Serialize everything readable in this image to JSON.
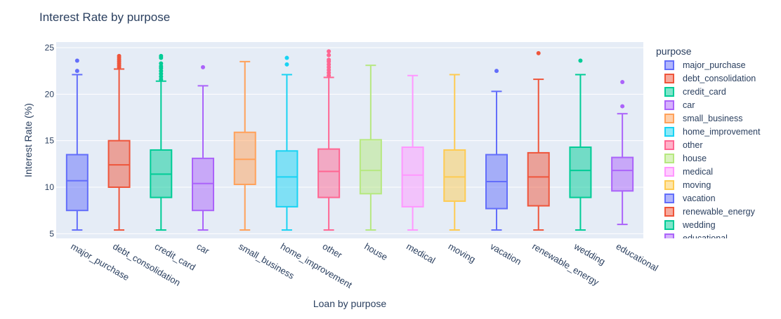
{
  "chart_data": {
    "type": "box",
    "title": "Interest Rate by purpose",
    "xlabel": "Loan by purpose",
    "ylabel": "Interest Rate (%)",
    "ylim": [
      4.5,
      25.6
    ],
    "yticks": [
      5,
      10,
      15,
      20,
      25
    ],
    "grid": true,
    "legend": {
      "title": "purpose",
      "placement": "right"
    },
    "categories": [
      "major_purchase",
      "debt_consolidation",
      "credit_card",
      "car",
      "small_business",
      "home_improvement",
      "other",
      "house",
      "medical",
      "moving",
      "vacation",
      "renewable_energy",
      "wedding",
      "educational"
    ],
    "series": [
      {
        "name": "major_purchase",
        "color": "#636efa",
        "min": 5.4,
        "q1": 7.5,
        "median": 10.7,
        "q3": 13.5,
        "max": 22.1,
        "outliers": [
          22.5,
          23.6
        ]
      },
      {
        "name": "debt_consolidation",
        "color": "#ef553b",
        "min": 5.4,
        "q1": 10.0,
        "median": 12.4,
        "q3": 15.0,
        "max": 22.7,
        "outliers": [
          22.9,
          23.1,
          23.3,
          23.5,
          23.7,
          23.9,
          24.1
        ]
      },
      {
        "name": "credit_card",
        "color": "#00cc96",
        "min": 5.4,
        "q1": 8.9,
        "median": 11.4,
        "q3": 14.0,
        "max": 21.4,
        "outliers": [
          21.6,
          21.9,
          22.2,
          22.5,
          22.8,
          23.0,
          23.3,
          23.9,
          24.1
        ]
      },
      {
        "name": "car",
        "color": "#ab63fa",
        "min": 5.4,
        "q1": 7.5,
        "median": 10.4,
        "q3": 13.1,
        "max": 20.9,
        "outliers": [
          22.9
        ]
      },
      {
        "name": "small_business",
        "color": "#ffa15a",
        "min": 5.4,
        "q1": 10.3,
        "median": 13.0,
        "q3": 15.9,
        "max": 23.5,
        "outliers": []
      },
      {
        "name": "home_improvement",
        "color": "#19d3f3",
        "min": 5.4,
        "q1": 7.9,
        "median": 11.1,
        "q3": 13.9,
        "max": 22.1,
        "outliers": [
          23.2,
          23.9
        ]
      },
      {
        "name": "other",
        "color": "#ff6692",
        "min": 5.4,
        "q1": 8.9,
        "median": 11.7,
        "q3": 14.1,
        "max": 21.8,
        "outliers": [
          22.0,
          22.3,
          22.6,
          22.9,
          23.2,
          23.5,
          23.7,
          24.2,
          24.6
        ]
      },
      {
        "name": "house",
        "color": "#b6e880",
        "min": 5.4,
        "q1": 9.3,
        "median": 11.8,
        "q3": 15.1,
        "max": 23.1,
        "outliers": []
      },
      {
        "name": "medical",
        "color": "#ff97ff",
        "min": 5.4,
        "q1": 7.9,
        "median": 11.3,
        "q3": 14.3,
        "max": 22.0,
        "outliers": []
      },
      {
        "name": "moving",
        "color": "#fecb52",
        "min": 5.4,
        "q1": 8.5,
        "median": 11.1,
        "q3": 14.0,
        "max": 22.1,
        "outliers": []
      },
      {
        "name": "vacation",
        "color": "#636efa",
        "min": 5.4,
        "q1": 7.7,
        "median": 10.6,
        "q3": 13.5,
        "max": 20.3,
        "outliers": [
          22.5
        ]
      },
      {
        "name": "renewable_energy",
        "color": "#ef553b",
        "min": 5.4,
        "q1": 8.0,
        "median": 11.1,
        "q3": 13.7,
        "max": 21.6,
        "outliers": [
          24.4
        ]
      },
      {
        "name": "wedding",
        "color": "#00cc96",
        "min": 5.4,
        "q1": 8.9,
        "median": 11.8,
        "q3": 14.3,
        "max": 22.1,
        "outliers": [
          23.6
        ]
      },
      {
        "name": "educational",
        "color": "#ab63fa",
        "min": 6.0,
        "q1": 9.6,
        "median": 11.8,
        "q3": 13.2,
        "max": 17.9,
        "outliers": [
          18.7,
          21.3
        ]
      }
    ]
  }
}
